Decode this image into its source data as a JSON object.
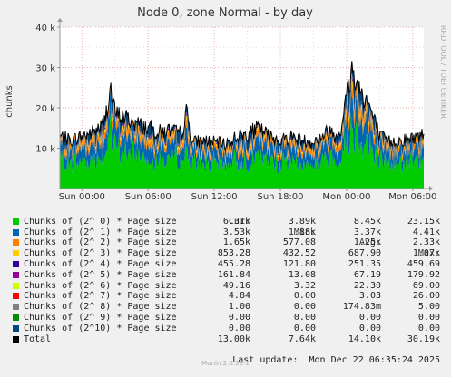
{
  "chart_data": {
    "type": "area",
    "title": "Node 0, zone Normal - by day",
    "ylabel": "chunks",
    "ylim": [
      0,
      40000
    ],
    "ytick_labels": [
      "10 k",
      "20 k",
      "30 k",
      "40 k"
    ],
    "ytick_values": [
      10000,
      20000,
      30000,
      40000
    ],
    "x_range_hours": [
      -2,
      31
    ],
    "xtick_labels": [
      "Sun 00:00",
      "Sun 06:00",
      "Sun 12:00",
      "Sun 18:00",
      "Mon 00:00",
      "Mon 06:00"
    ],
    "xtick_hours": [
      0,
      6,
      12,
      18,
      24,
      30
    ],
    "side_label": "RRDTOOL / TOBI OETIKER",
    "grid": true,
    "stacked": true,
    "total_profile": {
      "hours": [
        -2,
        -1,
        0,
        1,
        2,
        2.6,
        3,
        4,
        5,
        6,
        7,
        8,
        9,
        9.5,
        10,
        11,
        12,
        13,
        14,
        15,
        16,
        17,
        18,
        19,
        20,
        21,
        22,
        22.5,
        23,
        23.5,
        24,
        24.5,
        25,
        26,
        27,
        28,
        29,
        30,
        31
      ],
      "values": [
        13000,
        12000,
        13000,
        14000,
        16000,
        25000,
        18500,
        17500,
        16000,
        15000,
        14000,
        14500,
        13500,
        19000,
        11500,
        12000,
        11500,
        11000,
        13000,
        13500,
        15000,
        13000,
        12000,
        13000,
        12000,
        11500,
        13500,
        14500,
        13000,
        15000,
        23000,
        29500,
        25500,
        21000,
        13000,
        11500,
        12000,
        12500,
        13500
      ]
    },
    "series": [
      {
        "name": "Chunks of (2^ 0) * Page size",
        "color": "#00cc00",
        "cur": "6.31k",
        "min": "3.89k",
        "avg": "8.45k",
        "max": "23.15k"
      },
      {
        "name": "Chunks of (2^ 1) * Page size",
        "color": "#0066b3",
        "cur": "3.53k",
        "min": "1.88k",
        "avg": "3.37k",
        "max": "4.41k"
      },
      {
        "name": "Chunks of (2^ 2) * Page size",
        "color": "#ff8000",
        "cur": "1.65k",
        "min": "577.08",
        "avg": "1.25k",
        "max": "2.33k"
      },
      {
        "name": "Chunks of (2^ 3) * Page size",
        "color": "#ffcc00",
        "cur": "853.28",
        "min": "432.52",
        "avg": "687.90",
        "max": "1.07k"
      },
      {
        "name": "Chunks of (2^ 4) * Page size",
        "color": "#330099",
        "cur": "455.28",
        "min": "121.80",
        "avg": "251.35",
        "max": "459.69"
      },
      {
        "name": "Chunks of (2^ 5) * Page size",
        "color": "#990099",
        "cur": "161.84",
        "min": "13.08",
        "avg": "67.19",
        "max": "179.92"
      },
      {
        "name": "Chunks of (2^ 6) * Page size",
        "color": "#ccff00",
        "cur": "49.16",
        "min": "3.32",
        "avg": "22.30",
        "max": "69.00"
      },
      {
        "name": "Chunks of (2^ 7) * Page size",
        "color": "#ff0000",
        "cur": "4.84",
        "min": "0.00",
        "avg": "3.03",
        "max": "26.00"
      },
      {
        "name": "Chunks of (2^ 8) * Page size",
        "color": "#808080",
        "cur": "1.00",
        "min": "0.00",
        "avg": "174.83m",
        "max": "5.00"
      },
      {
        "name": "Chunks of (2^ 9) * Page size",
        "color": "#008f00",
        "cur": "0.00",
        "min": "0.00",
        "avg": "0.00",
        "max": "0.00"
      },
      {
        "name": "Chunks of (2^10) * Page size",
        "color": "#00487d",
        "cur": "0.00",
        "min": "0.00",
        "avg": "0.00",
        "max": "0.00"
      }
    ],
    "total": {
      "name": "Total",
      "color": "#000000",
      "cur": "13.00k",
      "min": "7.64k",
      "avg": "14.10k",
      "max": "30.19k"
    }
  },
  "legend_headers": {
    "cur": "Cur:",
    "min": "Min:",
    "avg": "Avg:",
    "max": "Max:"
  },
  "last_update": "Last update:  Mon Dec 22 06:35:24 2025",
  "footer": "Munin 2.0.33-1",
  "colors": {
    "background": "#f0f0f0",
    "plot_background": "#ffffff",
    "grid_major": "#e8b0b0"
  }
}
